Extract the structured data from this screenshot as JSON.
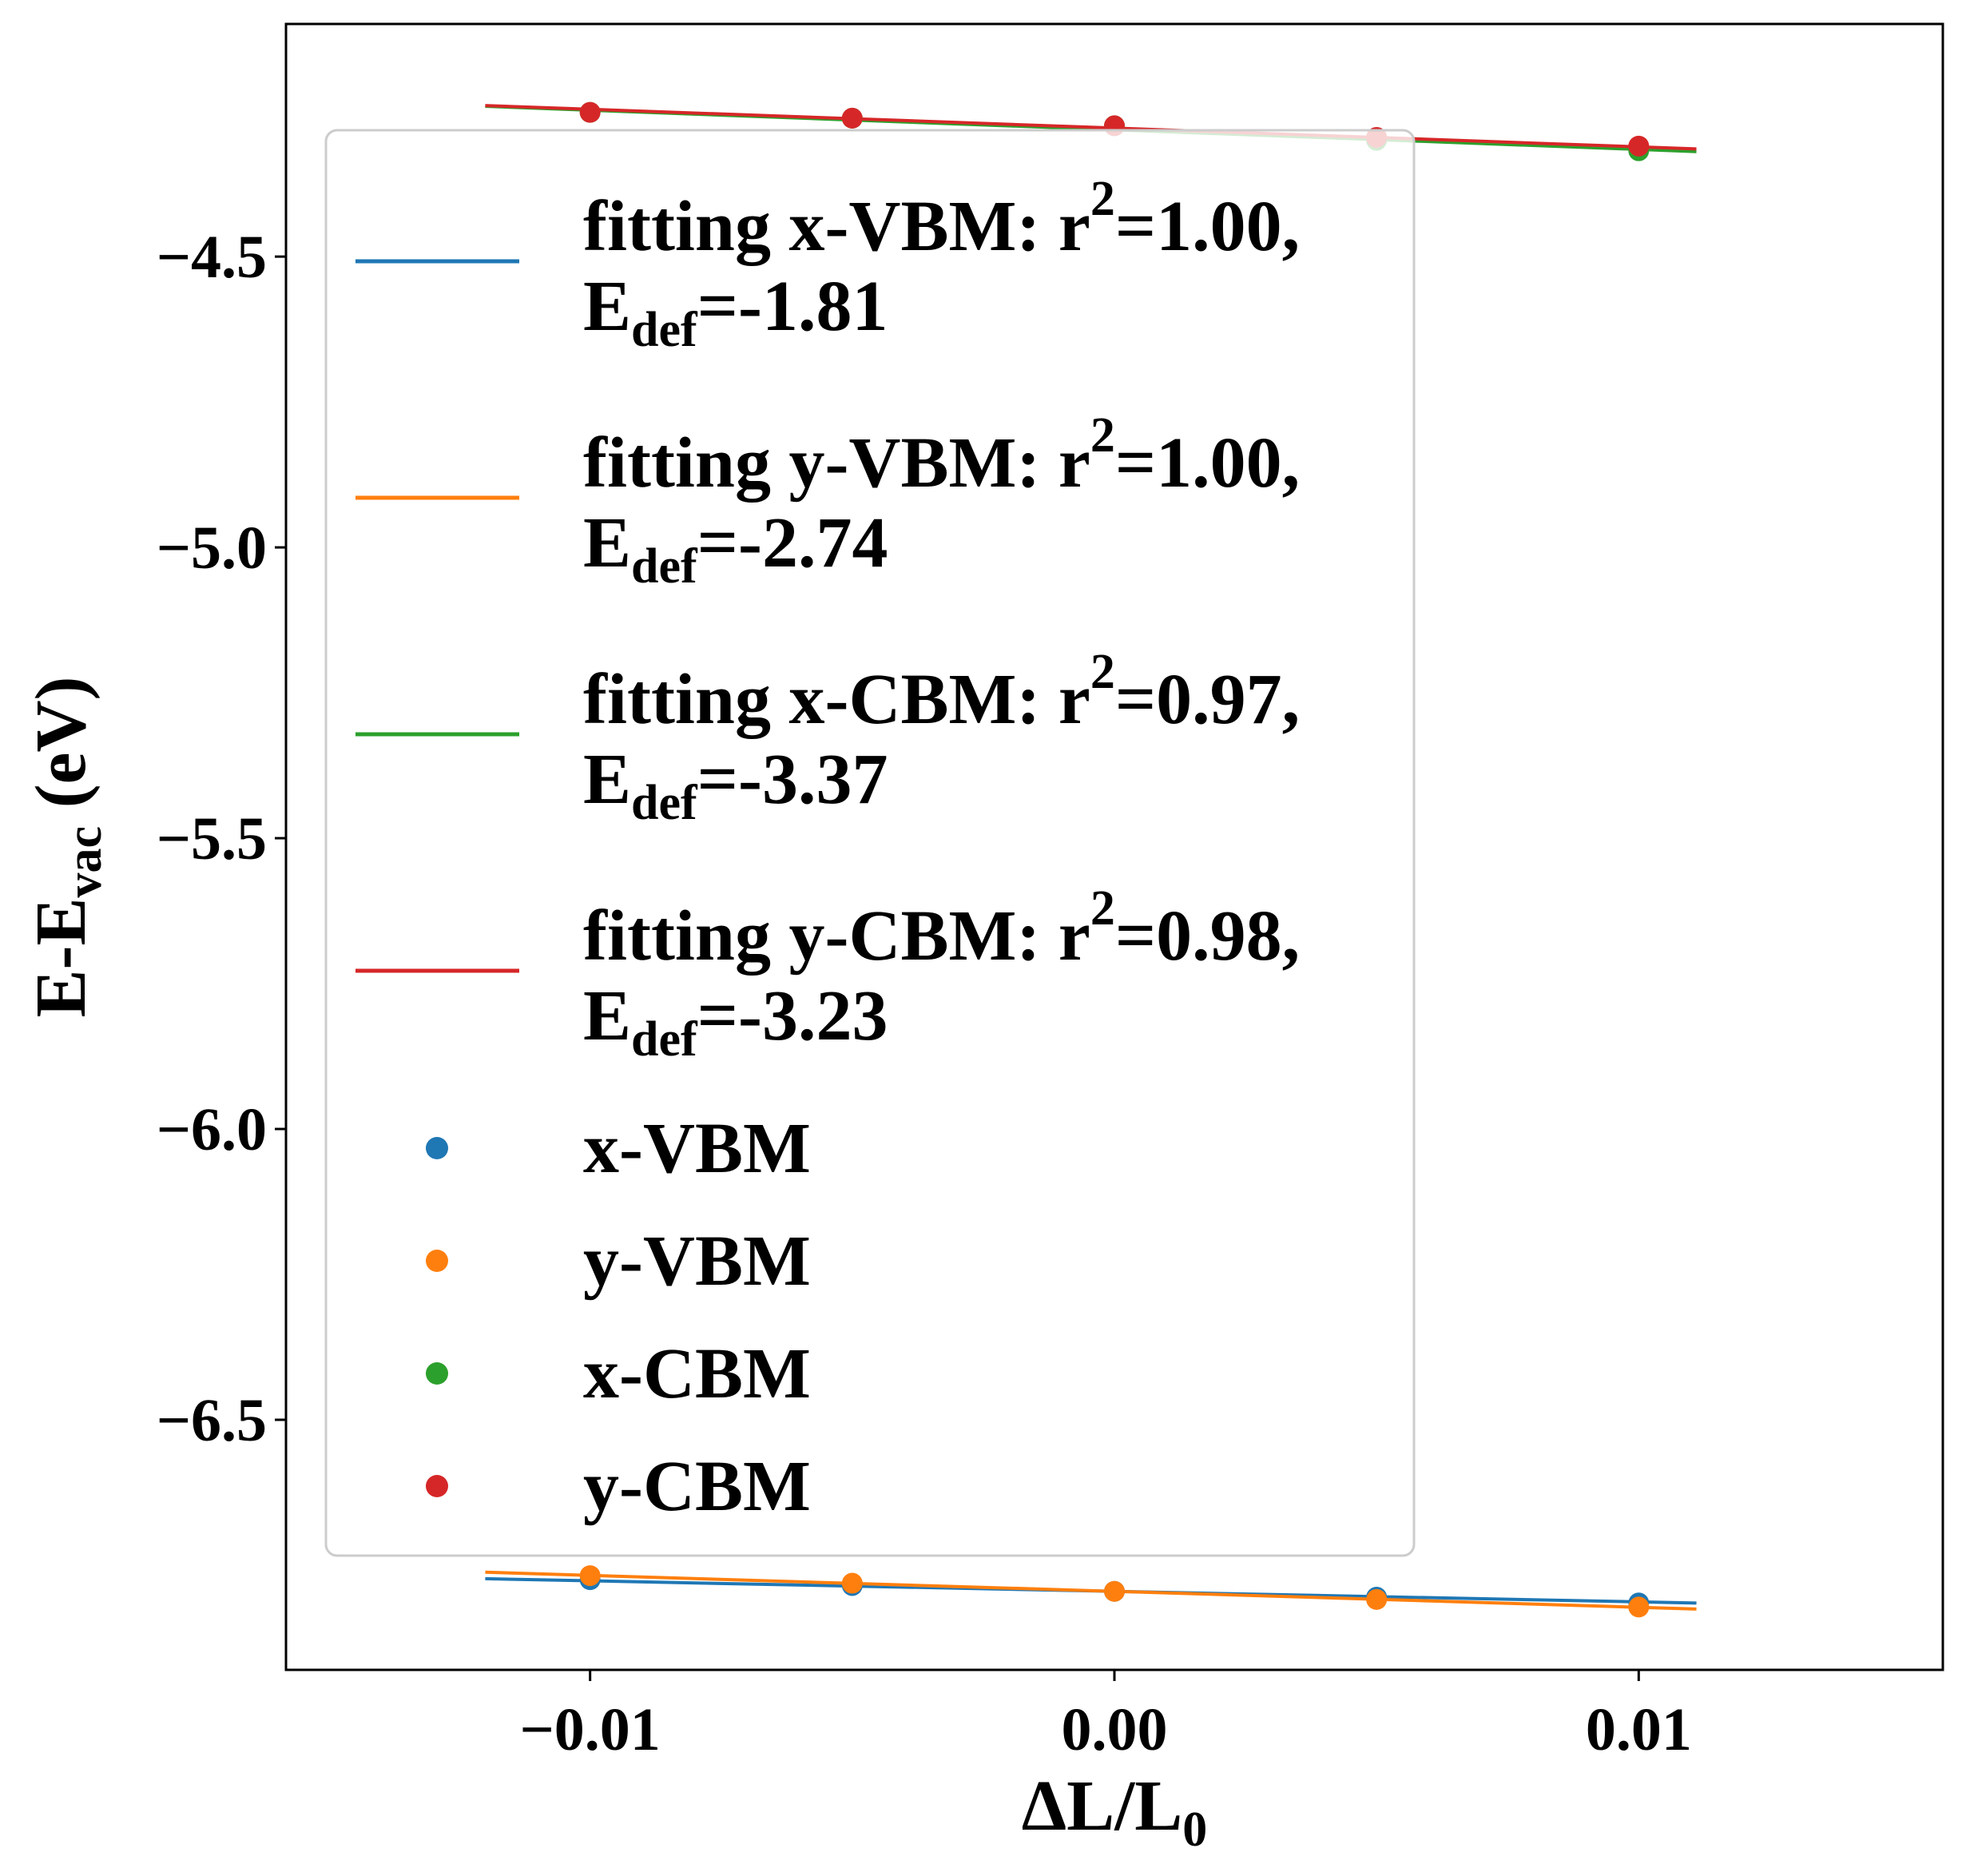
{
  "chart_data": {
    "type": "scatter",
    "title": "",
    "xlabel": {
      "main": "ΔL/L",
      "sub": "0"
    },
    "ylabel": {
      "pre": "E-E",
      "sub": "vac",
      "post": " (eV)"
    },
    "xlim": [
      -0.0158,
      0.0158
    ],
    "ylim": [
      -6.93,
      -4.1
    ],
    "xticks": [
      -0.01,
      0.0,
      0.01
    ],
    "xtick_labels": [
      "−0.01",
      "0.00",
      "0.01"
    ],
    "yticks": [
      -4.5,
      -5.0,
      -5.5,
      -6.0,
      -6.5
    ],
    "ytick_labels": [
      "−4.5",
      "−5.0",
      "−5.5",
      "−6.0",
      "−6.5"
    ],
    "grid": false,
    "legend_position": "upper-left",
    "fit_range": [
      -0.012,
      0.0111
    ],
    "series": [
      {
        "name": "x-VBM",
        "color": "#1f77b4",
        "x": [
          -0.01,
          -0.005,
          0.0,
          0.005,
          0.01
        ],
        "y": [
          -6.775,
          -6.785,
          -6.795,
          -6.805,
          -6.815
        ],
        "fit": {
          "intercept": -6.795,
          "slope": -1.81,
          "r2_label": "=1.00,",
          "edef_label": "=-1.81"
        }
      },
      {
        "name": "y-VBM",
        "color": "#ff7f0e",
        "x": [
          -0.01,
          -0.005,
          0.0,
          0.005,
          0.01
        ],
        "y": [
          -6.768,
          -6.781,
          -6.795,
          -6.809,
          -6.822
        ],
        "fit": {
          "intercept": -6.795,
          "slope": -2.74,
          "r2_label": "=1.00,",
          "edef_label": "=-2.74"
        }
      },
      {
        "name": "x-CBM",
        "color": "#2ca02c",
        "x": [
          -0.01,
          -0.005,
          0.0,
          0.005,
          0.01
        ],
        "y": [
          -4.252,
          -4.262,
          -4.275,
          -4.3,
          -4.318
        ],
        "fit": {
          "intercept": -4.282,
          "slope": -3.37,
          "r2_label": "=0.97,",
          "edef_label": "=-3.37"
        }
      },
      {
        "name": "y-CBM",
        "color": "#d62728",
        "x": [
          -0.01,
          -0.005,
          0.0,
          0.005,
          0.01
        ],
        "y": [
          -4.252,
          -4.262,
          -4.275,
          -4.295,
          -4.31
        ],
        "fit": {
          "intercept": -4.279,
          "slope": -3.23,
          "r2_label": "=0.98,",
          "edef_label": "=-3.23"
        }
      }
    ],
    "legend_fit_prefix": "fitting ",
    "legend_r_text": ": r",
    "legend_sup": "2",
    "legend_e": "E",
    "legend_e_sub": "def"
  }
}
